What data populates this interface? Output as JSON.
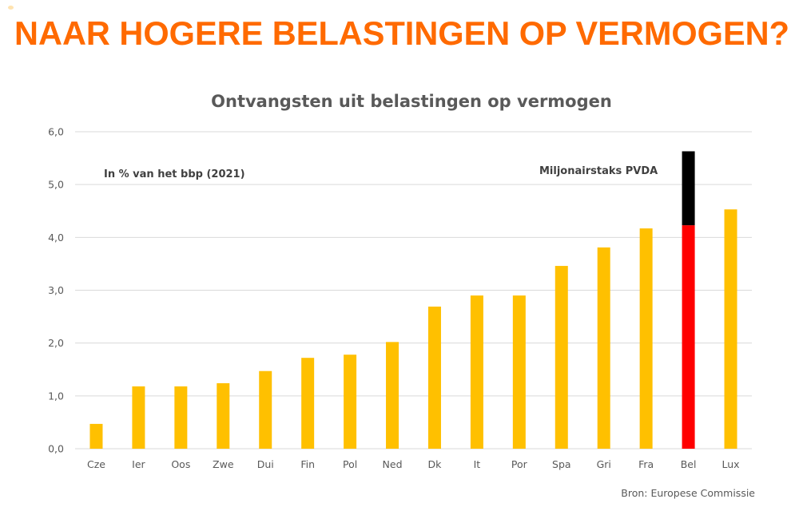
{
  "slide": {
    "headline": "NAAR HOGERE BELASTINGEN OP VERMOGEN?"
  },
  "colors": {
    "headline": "#ff6a00",
    "bar": "#ffc000",
    "belgium_current": "#ff0000",
    "millionaire_tax": "#000000",
    "grid": "#d9d9d9",
    "text": "#595959"
  },
  "chart_data": {
    "type": "bar",
    "title": "Ontvangsten uit belastingen op vermogen",
    "subtitle": "In % van het bbp (2021)",
    "xlabel": "",
    "ylabel": "",
    "ylim": [
      0,
      6
    ],
    "yticks": [
      0,
      1,
      2,
      3,
      4,
      5,
      6
    ],
    "ytick_labels": [
      "0,0",
      "1,0",
      "2,0",
      "3,0",
      "4,0",
      "5,0",
      "6,0"
    ],
    "grid": true,
    "categories": [
      "Cze",
      "Ier",
      "Oos",
      "Zwe",
      "Dui",
      "Fin",
      "Pol",
      "Ned",
      "Dk",
      "It",
      "Por",
      "Spa",
      "Gri",
      "Fra",
      "Bel",
      "Lux"
    ],
    "series": [
      {
        "name": "Ontvangsten uit belastingen op vermogen",
        "values": [
          0.47,
          1.18,
          1.18,
          1.24,
          1.47,
          1.72,
          1.78,
          2.02,
          2.69,
          2.9,
          2.9,
          3.46,
          3.81,
          4.17,
          4.23,
          4.53
        ]
      },
      {
        "name": "Miljonairstaks PVDA",
        "stacked_on": "Bel",
        "values": [
          0,
          0,
          0,
          0,
          0,
          0,
          0,
          0,
          0,
          0,
          0,
          0,
          0,
          0,
          1.4,
          0
        ]
      }
    ],
    "annotations": [
      {
        "text": "Miljonairstaks PVDA",
        "near": "Bel"
      }
    ],
    "source": "Bron: Europese Commissie"
  }
}
